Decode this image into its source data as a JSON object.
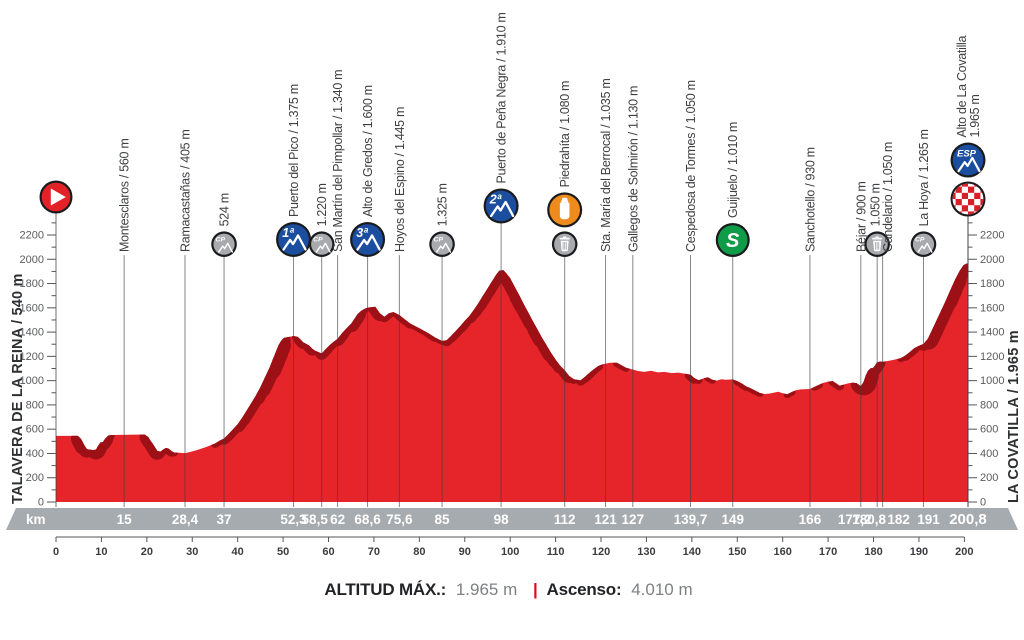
{
  "stage": {
    "left_axis_label": "TALAVERA DE LA REINA / 540 m",
    "right_axis_label": "LA COVATILLA / 1.965 m",
    "km_unit_label": "km",
    "footer": {
      "altitude_label": "ALTITUD MÁX.:",
      "altitude_value": "1.965 m",
      "separator": "|",
      "ascent_label": "Ascenso:",
      "ascent_value": "4.010 m"
    },
    "icon_text": {
      "cat1": "1ª",
      "cat2": "2ª",
      "cat3": "3ª",
      "esp": "ESP",
      "cp": "CP",
      "sprint": "S"
    },
    "colors": {
      "profile_red": "#e6252a",
      "climb_shade": "#9c1016",
      "band_gray": "#a6abaf",
      "category_blue": "#1b4e9e",
      "sprint_green": "#0f9b48",
      "feed_orange": "#ef8a1d",
      "neutral_gray_icon": "#a8aaad",
      "finish_red": "#d61f26",
      "start_red": "#e32227",
      "accent_red": "#e30613",
      "marker_line": "rgba(60,62,66,0.62)",
      "axis_dark": "#55565a"
    }
  },
  "chart_data": {
    "type": "area",
    "title": "Stage elevation profile: Talavera de la Reina to Alto de La Covatilla",
    "xlabel": "km",
    "ylabel": "m",
    "xlim": [
      0,
      200.8
    ],
    "ylim": [
      0,
      2290
    ],
    "grid": false,
    "y_axis_ticks": {
      "min": 0,
      "max": 2200,
      "step": 200,
      "minor_step": 100
    },
    "ruler_ticks": {
      "min": 0,
      "max": 200,
      "step": 10
    },
    "start_km": 0,
    "x": [
      0,
      4.8,
      5.5,
      6.2,
      6.8,
      8.2,
      8.8,
      9.2,
      9.8,
      10.3,
      10.8,
      11.5,
      12.5,
      19.5,
      20.3,
      20.8,
      21.3,
      21.8,
      22.3,
      23,
      23.6,
      24.2,
      24.8,
      25.4,
      26,
      28.4,
      29.5,
      31,
      33,
      35,
      36,
      37,
      37.7,
      38.3,
      39,
      40,
      41,
      42,
      43,
      44,
      45,
      46,
      47,
      47.7,
      48.4,
      49,
      49.6,
      50.2,
      51,
      52.3,
      53.2,
      53.8,
      54.4,
      55.2,
      55.8,
      56.4,
      57.1,
      58.5,
      59.2,
      59.8,
      60.5,
      61.2,
      62,
      63,
      64,
      65,
      65.7,
      66.4,
      67.2,
      68,
      68.6,
      70.3,
      71.3,
      72.3,
      73.3,
      74.3,
      75.6,
      76.6,
      78,
      80,
      82,
      83.5,
      85,
      86,
      87,
      88,
      89,
      90,
      91,
      92,
      93,
      94,
      95,
      96,
      97,
      97.6,
      98.5,
      99.2,
      100,
      101,
      102,
      103,
      104,
      105,
      106,
      107,
      108,
      109,
      110,
      111,
      112,
      113,
      114,
      115.5,
      116.5,
      117.5,
      118.5,
      119.5,
      120.5,
      122,
      123.5,
      124.5,
      125.5,
      127,
      128,
      129.5,
      131,
      132.5,
      134,
      135.5,
      137,
      138.5,
      139.7,
      140.5,
      141.5,
      142.5,
      143.5,
      144.5,
      145.5,
      146.5,
      147.5,
      149,
      150,
      151,
      152,
      153,
      154,
      155,
      156,
      157,
      158,
      159,
      160,
      161,
      162,
      163,
      164,
      166,
      167,
      168,
      169,
      170,
      171,
      171.8,
      172.5,
      173.5,
      174.5,
      175.5,
      176.3,
      177.2,
      177.8,
      178.3,
      178.8,
      179.3,
      180,
      180.8,
      181.5,
      182,
      183,
      184,
      185,
      186,
      187,
      188,
      189,
      190,
      191,
      192,
      193,
      194,
      195,
      196,
      197,
      198,
      199,
      199.8,
      200.4,
      200.8
    ],
    "y": [
      545,
      545,
      520,
      470,
      435,
      428,
      432,
      460,
      490,
      492,
      520,
      548,
      552,
      556,
      535,
      505,
      480,
      450,
      420,
      415,
      432,
      445,
      440,
      420,
      408,
      403,
      412,
      428,
      452,
      482,
      505,
      522,
      548,
      572,
      600,
      640,
      695,
      755,
      815,
      875,
      945,
      1025,
      1105,
      1170,
      1235,
      1290,
      1330,
      1352,
      1358,
      1368,
      1360,
      1340,
      1315,
      1300,
      1288,
      1262,
      1245,
      1224,
      1252,
      1275,
      1300,
      1322,
      1344,
      1392,
      1432,
      1468,
      1508,
      1548,
      1575,
      1592,
      1602,
      1608,
      1555,
      1525,
      1555,
      1565,
      1540,
      1510,
      1470,
      1432,
      1390,
      1355,
      1327,
      1332,
      1368,
      1408,
      1448,
      1492,
      1532,
      1582,
      1638,
      1698,
      1758,
      1818,
      1878,
      1906,
      1910,
      1882,
      1842,
      1772,
      1702,
      1628,
      1558,
      1488,
      1422,
      1352,
      1292,
      1228,
      1172,
      1122,
      1084,
      1038,
      1012,
      1002,
      1032,
      1066,
      1096,
      1122,
      1136,
      1148,
      1148,
      1126,
      1106,
      1092,
      1080,
      1072,
      1082,
      1068,
      1072,
      1062,
      1066,
      1056,
      1050,
      1022,
      1004,
      1018,
      1028,
      1008,
      1000,
      1012,
      1008,
      1010,
      996,
      976,
      952,
      936,
      916,
      898,
      890,
      893,
      900,
      908,
      896,
      888,
      906,
      922,
      928,
      931,
      948,
      966,
      982,
      992,
      996,
      976,
      958,
      968,
      978,
      982,
      978,
      953,
      986,
      1042,
      1082,
      1100,
      1106,
      1152,
      1158,
      1155,
      1161,
      1168,
      1176,
      1186,
      1206,
      1236,
      1268,
      1286,
      1302,
      1346,
      1426,
      1506,
      1586,
      1666,
      1752,
      1836,
      1906,
      1950,
      1963,
      1965
    ],
    "markers": [
      {
        "km": 15,
        "label": "Montesclaros / 560 m",
        "icons": []
      },
      {
        "km": 28.4,
        "label": "Ramacastañas / 405 m",
        "icons": [],
        "band_label": "28,4"
      },
      {
        "km": 37,
        "label": "524 m",
        "icons": [
          "unclassified-climb-icon"
        ]
      },
      {
        "km": 52.3,
        "label": "Puerto del Pico / 1.375 m",
        "icons": [
          "category-1-icon"
        ],
        "band_label": "52,3"
      },
      {
        "km": 58.5,
        "label": "1.220 m",
        "icons": [
          "unclassified-climb-icon"
        ],
        "band_label": "58,5",
        "band_dx": -7
      },
      {
        "km": 62,
        "label": "San Martín del Pimpollar / 1.340 m",
        "icons": []
      },
      {
        "km": 68.6,
        "label": "Alto de Gredos / 1.600 m",
        "icons": [
          "category-3-icon"
        ],
        "band_label": "68,6"
      },
      {
        "km": 75.6,
        "label": "Hoyos del Espino / 1.445 m",
        "icons": [],
        "band_label": "75,6"
      },
      {
        "km": 85,
        "label": "1.325 m",
        "icons": [
          "unclassified-climb-icon"
        ]
      },
      {
        "km": 98,
        "label": "Puerto de Peña Negra / 1.910 m",
        "icons": [
          "category-2-icon"
        ]
      },
      {
        "km": 112,
        "label": "Piedrahíta / 1.080 m",
        "icons": [
          "feed-zone-icon",
          "litter-zone-icon"
        ]
      },
      {
        "km": 121,
        "label": "Sta. María del Berrocal / 1.035 m",
        "icons": []
      },
      {
        "km": 127,
        "label": "Gallegos de Solmirón / 1.130 m",
        "icons": []
      },
      {
        "km": 139.7,
        "label": "Cespedosa de Tormes / 1.050 m",
        "icons": [],
        "band_label": "139,7"
      },
      {
        "km": 149,
        "label": "Guijuelo / 1.010 m",
        "icons": [
          "intermediate-sprint-icon"
        ]
      },
      {
        "km": 166,
        "label": "Sanchotello / 930 m",
        "icons": []
      },
      {
        "km": 177.2,
        "label": "Béjar / 900 m",
        "icons": [],
        "band_label": "177,2",
        "band_dx": -6
      },
      {
        "km": 180.8,
        "label": "1.050 m",
        "icons": [
          "litter-zone-icon"
        ],
        "band_label": "180,8",
        "band_dx": -8,
        "label_dx": -2
      },
      {
        "km": 182,
        "label": "Candelario / 1.050 m",
        "icons": [],
        "band_dx": 16,
        "label_dx": 5
      },
      {
        "km": 191,
        "label": "La Hoya / 1.265 m",
        "icons": [
          "unclassified-climb-icon"
        ],
        "band_dx": 5
      },
      {
        "km": 200.8,
        "label": "Alto de La Covatilla",
        "label2": "1.965 m",
        "icons": [
          "category-esp-icon",
          "finish-icon"
        ],
        "band_label": "200,8",
        "band_class": "end"
      }
    ]
  }
}
